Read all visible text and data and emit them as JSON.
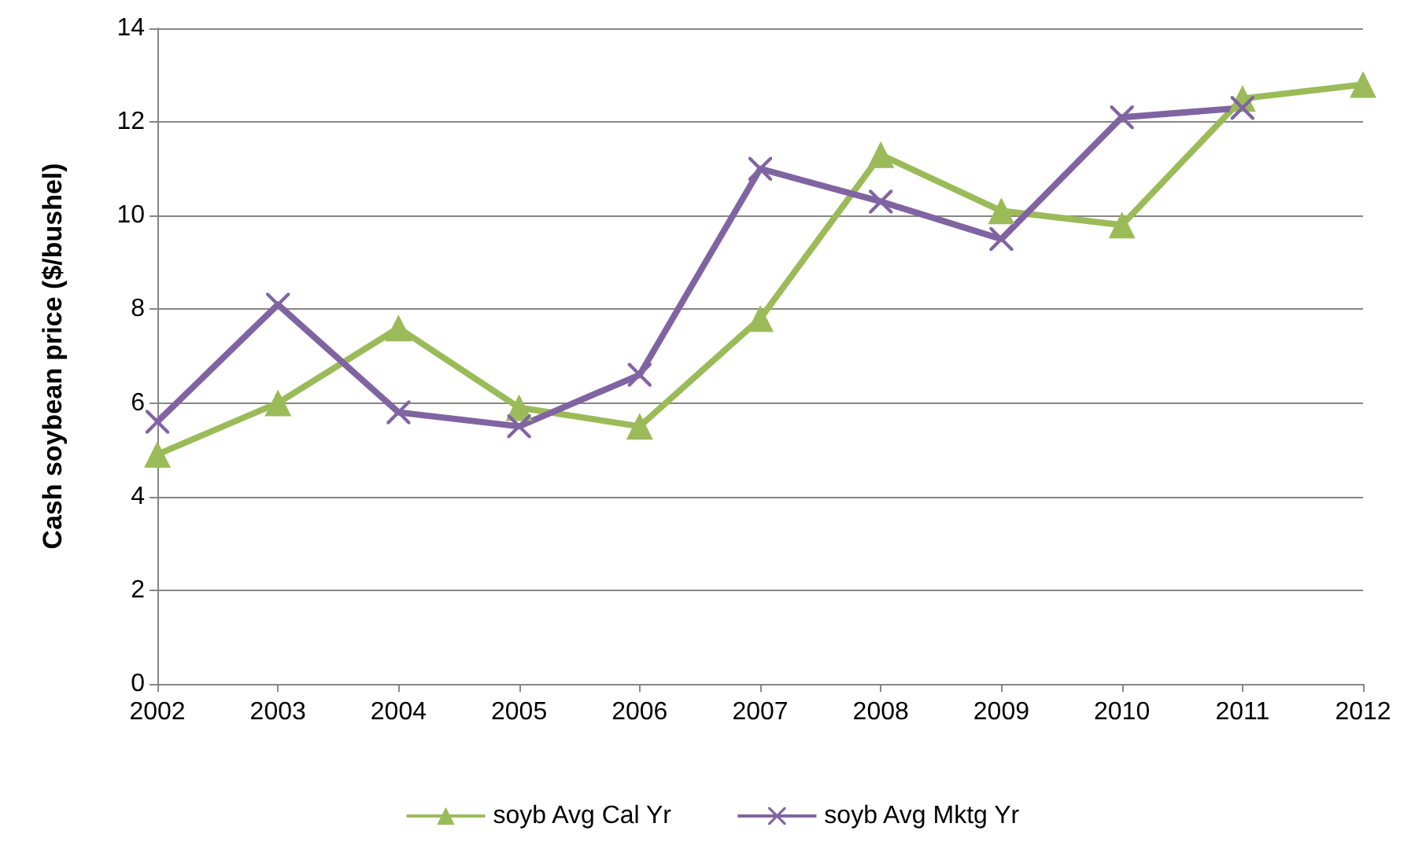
{
  "chart_data": {
    "type": "line",
    "ylabel": "Cash soybean price ($/bushel)",
    "categories": [
      "2002",
      "2003",
      "2004",
      "2005",
      "2006",
      "2007",
      "2008",
      "2009",
      "2010",
      "2011",
      "2012"
    ],
    "series": [
      {
        "name": "soyb Avg Cal Yr",
        "color": "#9bbb59",
        "marker": "triangle",
        "values": [
          4.9,
          6.0,
          7.6,
          5.9,
          5.5,
          7.8,
          11.3,
          10.1,
          9.8,
          12.5,
          12.8
        ]
      },
      {
        "name": "soyb Avg Mktg Yr",
        "color": "#8064a2",
        "marker": "cross",
        "values": [
          5.6,
          8.1,
          5.8,
          5.5,
          6.6,
          11.0,
          10.3,
          9.5,
          12.1,
          12.3,
          null
        ]
      }
    ],
    "ylim": [
      0,
      14
    ],
    "yticks": [
      0,
      2,
      4,
      6,
      8,
      10,
      12,
      14
    ],
    "grid": "y",
    "legend": "bottom",
    "line_style": "solid"
  }
}
